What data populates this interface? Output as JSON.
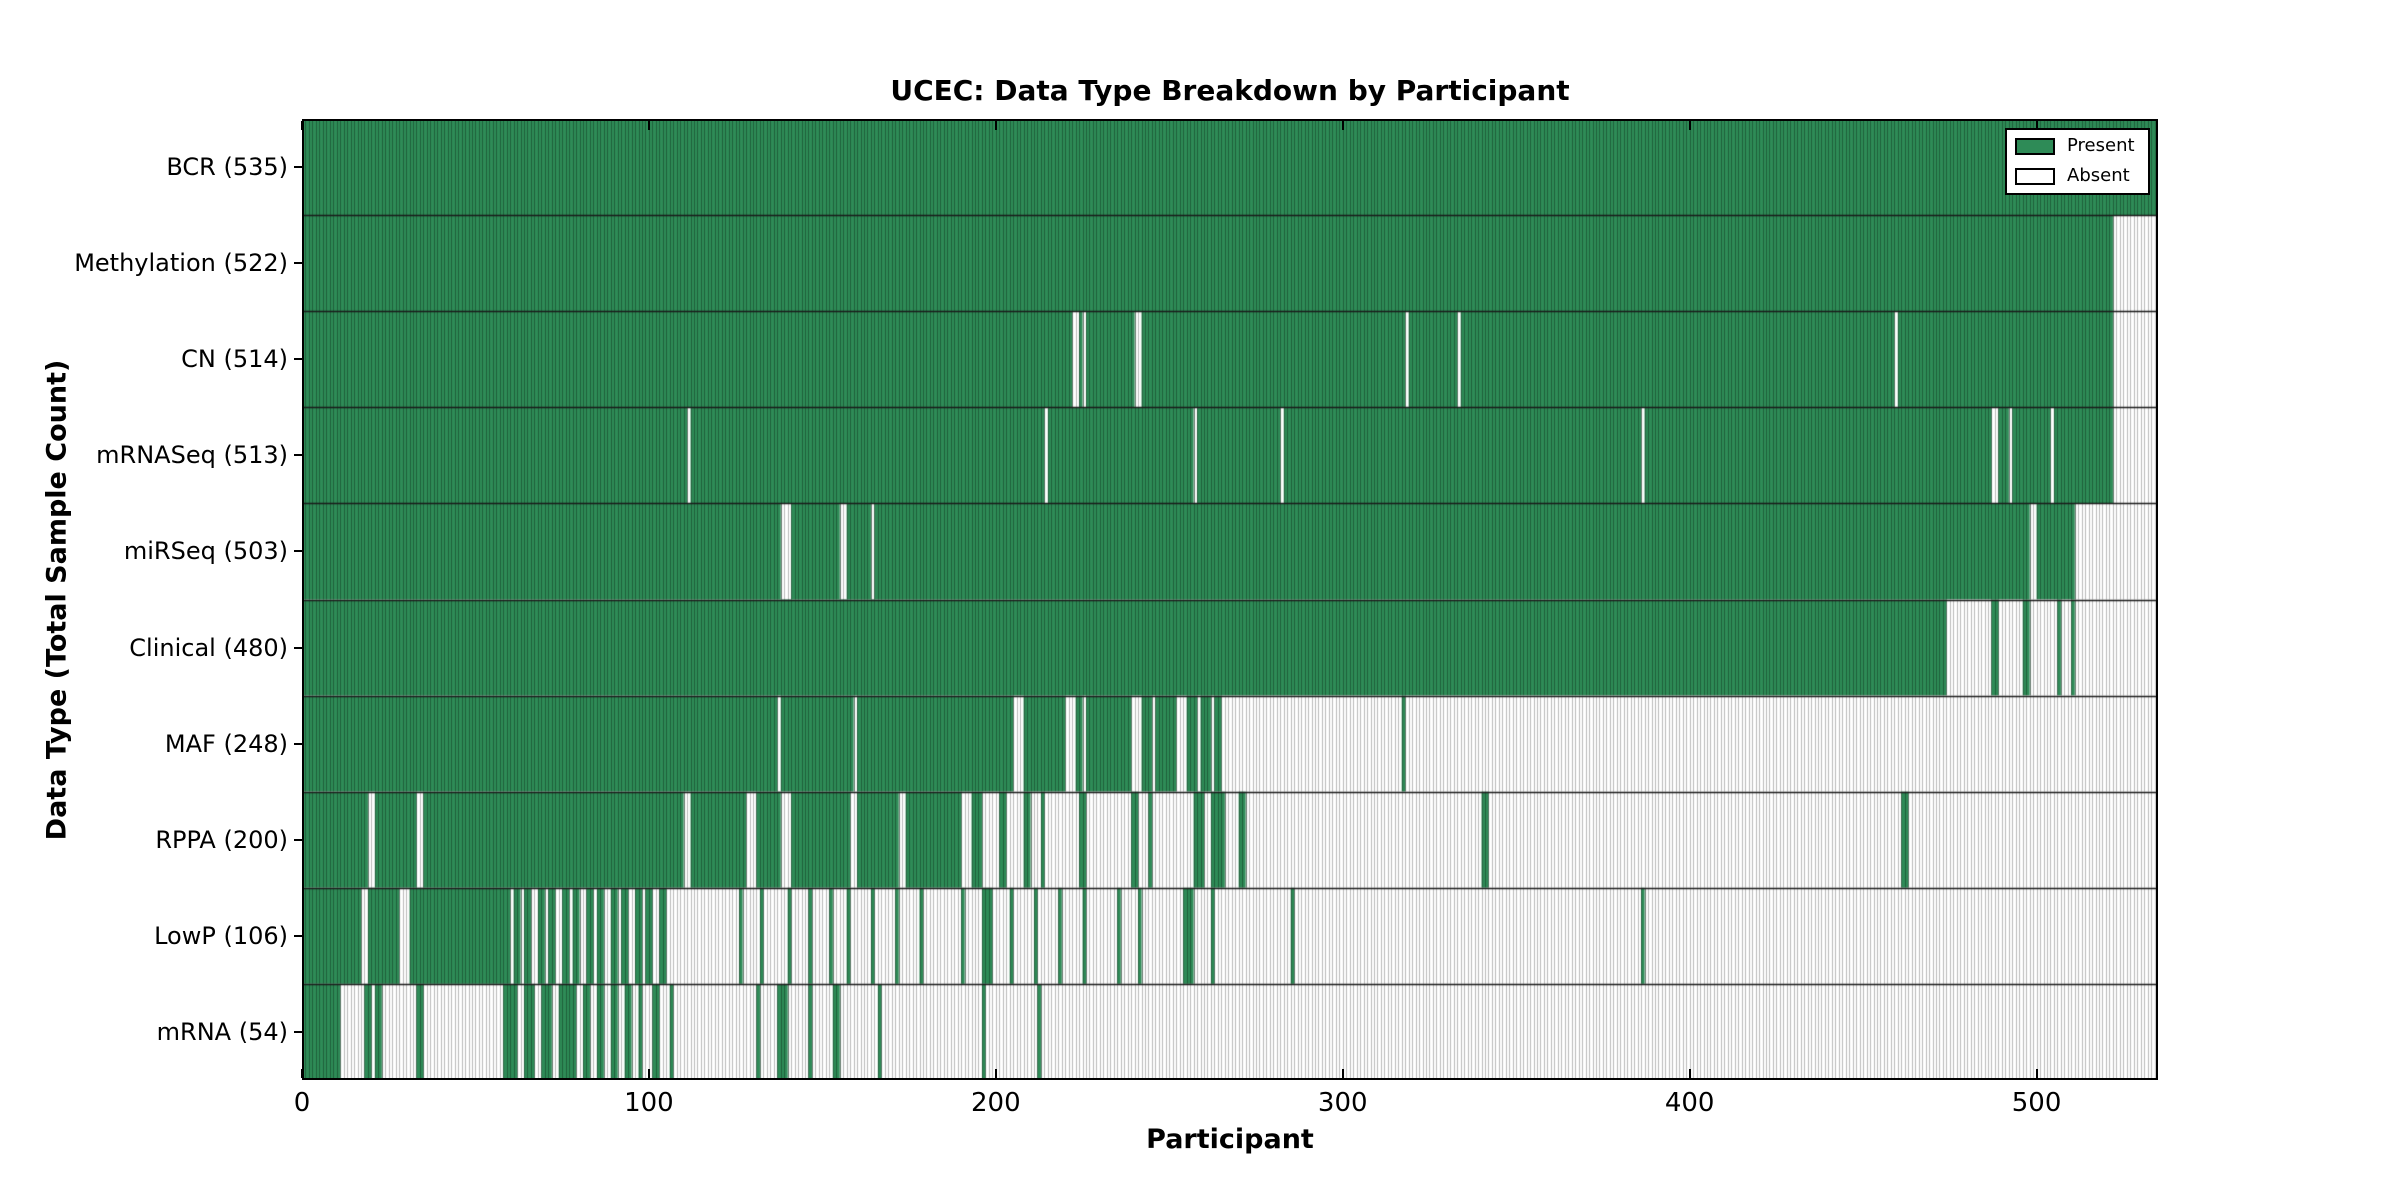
{
  "chart_data": {
    "type": "heatmap",
    "title": "UCEC: Data Type Breakdown by Participant",
    "xlabel": "Participant",
    "ylabel": "Data Type (Total Sample Count)",
    "xlim": [
      0,
      535
    ],
    "total_participants": 535,
    "x_ticks": [
      0,
      100,
      200,
      300,
      400,
      500
    ],
    "grid": false,
    "legend_position": "upper right",
    "legend": {
      "present_label": "Present",
      "absent_label": "Absent"
    },
    "colors": {
      "present": "#2E8B57",
      "present_edge": "rgba(10,45,25,0.45)",
      "absent": "#FFFFFF",
      "absent_edge": "#B9B9B9",
      "row_separator": "#1a1a1a",
      "axis": "#000000",
      "background": "#FFFFFF"
    },
    "rows": [
      {
        "label": "BCR",
        "count": 535,
        "present_segments": [
          [
            0,
            535
          ]
        ]
      },
      {
        "label": "Methylation",
        "count": 522,
        "present_segments": [
          [
            0,
            522
          ]
        ]
      },
      {
        "label": "CN",
        "count": 514,
        "present_segments": [
          [
            0,
            222
          ],
          [
            224,
            225
          ],
          [
            226,
            240
          ],
          [
            242,
            318
          ],
          [
            319,
            333
          ],
          [
            334,
            459
          ],
          [
            460,
            522
          ]
        ]
      },
      {
        "label": "mRNASeq",
        "count": 513,
        "present_segments": [
          [
            0,
            111
          ],
          [
            112,
            214
          ],
          [
            215,
            257
          ],
          [
            258,
            282
          ],
          [
            283,
            386
          ],
          [
            387,
            487
          ],
          [
            489,
            492
          ],
          [
            493,
            504
          ],
          [
            505,
            522
          ]
        ]
      },
      {
        "label": "miRSeq",
        "count": 503,
        "present_segments": [
          [
            0,
            138
          ],
          [
            141,
            155
          ],
          [
            157,
            164
          ],
          [
            165,
            498
          ],
          [
            500,
            511
          ]
        ]
      },
      {
        "label": "Clinical",
        "count": 480,
        "present_segments": [
          [
            0,
            474
          ],
          [
            487,
            489
          ],
          [
            496,
            498
          ],
          [
            506,
            507
          ],
          [
            510,
            511
          ]
        ]
      },
      {
        "label": "MAF",
        "count": 248,
        "present_segments": [
          [
            0,
            137
          ],
          [
            138,
            159
          ],
          [
            160,
            205
          ],
          [
            208,
            220
          ],
          [
            223,
            225
          ],
          [
            226,
            239
          ],
          [
            242,
            245
          ],
          [
            246,
            252
          ],
          [
            255,
            258
          ],
          [
            259,
            262
          ],
          [
            263,
            265
          ],
          [
            317,
            318
          ]
        ]
      },
      {
        "label": "RPPA",
        "count": 200,
        "present_segments": [
          [
            0,
            19
          ],
          [
            21,
            33
          ],
          [
            35,
            110
          ],
          [
            112,
            128
          ],
          [
            131,
            138
          ],
          [
            141,
            158
          ],
          [
            160,
            172
          ],
          [
            174,
            190
          ],
          [
            193,
            196
          ],
          [
            201,
            203
          ],
          [
            208,
            210
          ],
          [
            213,
            214
          ],
          [
            224,
            226
          ],
          [
            239,
            241
          ],
          [
            244,
            245
          ],
          [
            257,
            260
          ],
          [
            262,
            266
          ],
          [
            270,
            272
          ],
          [
            340,
            342
          ],
          [
            461,
            463
          ]
        ]
      },
      {
        "label": "LowP",
        "count": 106,
        "present_segments": [
          [
            0,
            17
          ],
          [
            19,
            28
          ],
          [
            31,
            60
          ],
          [
            61,
            63
          ],
          [
            64,
            66
          ],
          [
            68,
            70
          ],
          [
            71,
            73
          ],
          [
            75,
            77
          ],
          [
            78,
            80
          ],
          [
            82,
            84
          ],
          [
            85,
            87
          ],
          [
            89,
            91
          ],
          [
            92,
            94
          ],
          [
            96,
            98
          ],
          [
            99,
            101
          ],
          [
            103,
            105
          ],
          [
            126,
            127
          ],
          [
            132,
            133
          ],
          [
            140,
            141
          ],
          [
            146,
            147
          ],
          [
            152,
            153
          ],
          [
            157,
            158
          ],
          [
            164,
            165
          ],
          [
            171,
            172
          ],
          [
            178,
            179
          ],
          [
            190,
            191
          ],
          [
            196,
            199
          ],
          [
            204,
            205
          ],
          [
            211,
            212
          ],
          [
            218,
            219
          ],
          [
            225,
            226
          ],
          [
            235,
            236
          ],
          [
            241,
            242
          ],
          [
            254,
            257
          ],
          [
            262,
            263
          ],
          [
            285,
            286
          ],
          [
            386,
            387
          ]
        ]
      },
      {
        "label": "mRNA",
        "count": 54,
        "present_segments": [
          [
            0,
            11
          ],
          [
            18,
            20
          ],
          [
            21,
            23
          ],
          [
            33,
            35
          ],
          [
            58,
            62
          ],
          [
            64,
            67
          ],
          [
            69,
            72
          ],
          [
            74,
            79
          ],
          [
            81,
            83
          ],
          [
            85,
            87
          ],
          [
            89,
            91
          ],
          [
            93,
            95
          ],
          [
            97,
            98
          ],
          [
            101,
            103
          ],
          [
            106,
            107
          ],
          [
            131,
            132
          ],
          [
            137,
            140
          ],
          [
            146,
            147
          ],
          [
            153,
            155
          ],
          [
            166,
            167
          ],
          [
            196,
            197
          ],
          [
            212,
            213
          ]
        ]
      }
    ]
  }
}
